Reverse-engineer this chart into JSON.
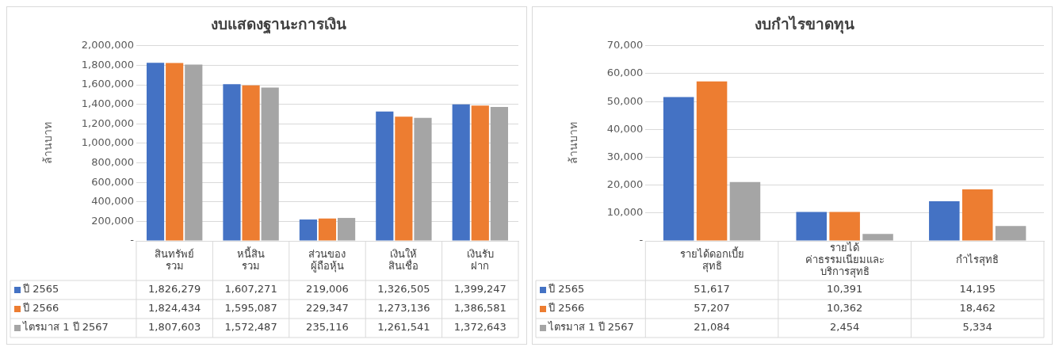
{
  "chart_data": [
    {
      "type": "bar",
      "title": "งบแสดงฐานะการเงิน",
      "ylabel": "ล้านบาท",
      "categories": [
        "สินทรัพย์ รวม",
        "หนี้สิน รวม",
        "ส่วนของ ผู้ถือหุ้น",
        "เงินให้ สินเชื่อ",
        "เงินรับ ฝาก"
      ],
      "series": [
        {
          "name": "ปี 2565",
          "color": "#4472c4",
          "values": [
            1826279,
            1607271,
            219006,
            1326505,
            1399247
          ],
          "value_labels": [
            "1,826,279",
            "1,607,271",
            "219,006",
            "1,326,505",
            "1,399,247"
          ]
        },
        {
          "name": "ปี 2566",
          "color": "#ed7d31",
          "values": [
            1824434,
            1595087,
            229347,
            1273136,
            1386581
          ],
          "value_labels": [
            "1,824,434",
            "1,595,087",
            "229,347",
            "1,273,136",
            "1,386,581"
          ]
        },
        {
          "name": "ไตรมาส 1 ปี 2567",
          "color": "#a5a5a5",
          "values": [
            1807603,
            1572487,
            235116,
            1261541,
            1372643
          ],
          "value_labels": [
            "1,807,603",
            "1,572,487",
            "235,116",
            "1,261,541",
            "1,372,643"
          ]
        }
      ],
      "ylim": [
        0,
        2000000
      ],
      "yticks": [
        {
          "value": 0,
          "label": "-"
        },
        {
          "value": 200000,
          "label": "200,000"
        },
        {
          "value": 400000,
          "label": "400,000"
        },
        {
          "value": 600000,
          "label": "600,000"
        },
        {
          "value": 800000,
          "label": "800,000"
        },
        {
          "value": 1000000,
          "label": "1,000,000"
        },
        {
          "value": 1200000,
          "label": "1,200,000"
        },
        {
          "value": 1400000,
          "label": "1,400,000"
        },
        {
          "value": 1600000,
          "label": "1,600,000"
        },
        {
          "value": 1800000,
          "label": "1,800,000"
        },
        {
          "value": 2000000,
          "label": "2,000,000"
        }
      ],
      "grid": "y",
      "legend": "bottom left"
    },
    {
      "type": "bar",
      "title": "งบกำไรขาดทุน",
      "ylabel": "ล้านบาท",
      "categories": [
        "รายได้ดอกเบี้ย สุทธิ",
        "รายได้ ค่าธรรมเนียมและ บริการสุทธิ",
        "กำไรสุทธิ"
      ],
      "series": [
        {
          "name": "ปี 2565",
          "color": "#4472c4",
          "values": [
            51617,
            10391,
            14195
          ],
          "value_labels": [
            "51,617",
            "10,391",
            "14,195"
          ]
        },
        {
          "name": "ปี 2566",
          "color": "#ed7d31",
          "values": [
            57207,
            10362,
            18462
          ],
          "value_labels": [
            "57,207",
            "10,362",
            "18,462"
          ]
        },
        {
          "name": "ไตรมาส 1 ปี 2567",
          "color": "#a5a5a5",
          "values": [
            21084,
            2454,
            5334
          ],
          "value_labels": [
            "21,084",
            "2,454",
            "5,334"
          ]
        }
      ],
      "ylim": [
        0,
        70000
      ],
      "yticks": [
        {
          "value": 0,
          "label": "-"
        },
        {
          "value": 10000,
          "label": "10,000"
        },
        {
          "value": 20000,
          "label": "20,000"
        },
        {
          "value": 30000,
          "label": "30,000"
        },
        {
          "value": 40000,
          "label": "40,000"
        },
        {
          "value": 50000,
          "label": "50,000"
        },
        {
          "value": 60000,
          "label": "60,000"
        },
        {
          "value": 70000,
          "label": "70,000"
        }
      ],
      "grid": "y",
      "legend": "bottom left"
    }
  ]
}
